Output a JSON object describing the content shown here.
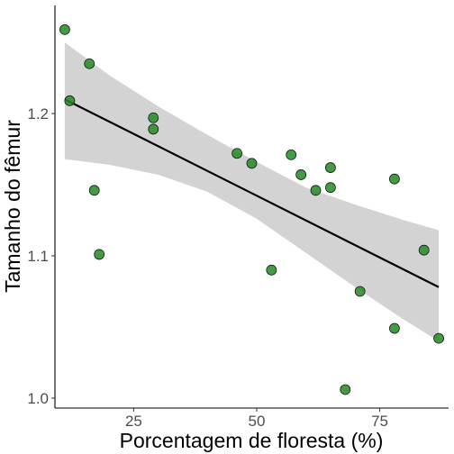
{
  "chart_data": {
    "type": "scatter",
    "xlabel": "Porcentagem de floresta (%)",
    "ylabel": "Tamanho do fêmur",
    "xlim": [
      9,
      89
    ],
    "ylim": [
      0.993,
      1.276
    ],
    "x_ticks": [
      25,
      50,
      75
    ],
    "x_tick_labels": [
      "25",
      "50",
      "75"
    ],
    "y_ticks": [
      1.0,
      1.1,
      1.2
    ],
    "y_tick_labels": [
      "1.0",
      "1.1",
      "1.2"
    ],
    "grid": false,
    "legend": "none",
    "point_color": "#228b22",
    "point_edge": "#1a1a1a",
    "fit_color": "#000000",
    "band_color": "#d3d3d3",
    "points": [
      {
        "x": 11.0,
        "y": 1.259
      },
      {
        "x": 12.0,
        "y": 1.209
      },
      {
        "x": 16.0,
        "y": 1.235
      },
      {
        "x": 17.0,
        "y": 1.146
      },
      {
        "x": 18.0,
        "y": 1.101
      },
      {
        "x": 29.0,
        "y": 1.197
      },
      {
        "x": 29.0,
        "y": 1.189
      },
      {
        "x": 46.0,
        "y": 1.172
      },
      {
        "x": 49.0,
        "y": 1.165
      },
      {
        "x": 53.0,
        "y": 1.09
      },
      {
        "x": 57.0,
        "y": 1.171
      },
      {
        "x": 59.0,
        "y": 1.157
      },
      {
        "x": 62.0,
        "y": 1.146
      },
      {
        "x": 65.0,
        "y": 1.162
      },
      {
        "x": 65.0,
        "y": 1.148
      },
      {
        "x": 68.0,
        "y": 1.006
      },
      {
        "x": 71.0,
        "y": 1.075
      },
      {
        "x": 78.0,
        "y": 1.154
      },
      {
        "x": 78.0,
        "y": 1.049
      },
      {
        "x": 84.0,
        "y": 1.104
      },
      {
        "x": 87.0,
        "y": 1.042
      }
    ],
    "fit_line": [
      {
        "x": 11.0,
        "y": 1.21
      },
      {
        "x": 87.0,
        "y": 1.078
      }
    ],
    "confidence_band": {
      "x": [
        11.0,
        20.0,
        30.0,
        40.0,
        50.0,
        60.0,
        70.0,
        80.0,
        87.0
      ],
      "upper": [
        1.25,
        1.227,
        1.205,
        1.185,
        1.166,
        1.148,
        1.136,
        1.125,
        1.118
      ],
      "lower": [
        1.168,
        1.164,
        1.157,
        1.145,
        1.126,
        1.102,
        1.078,
        1.055,
        1.04
      ]
    }
  }
}
